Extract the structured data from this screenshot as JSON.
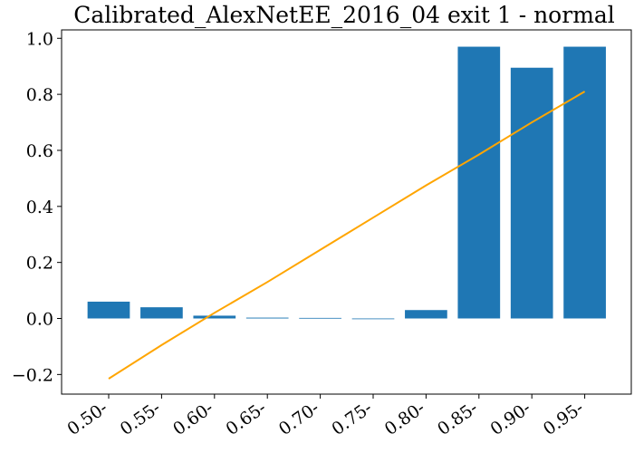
{
  "chart_data": {
    "type": "bar",
    "title": "Calibrated_AlexNetEE_2016_04 exit 1 - normal",
    "xlabel": "",
    "ylabel": "",
    "categories": [
      "0.50-",
      "0.55-",
      "0.60-",
      "0.65-",
      "0.70-",
      "0.75-",
      "0.80-",
      "0.85-",
      "0.90-",
      "0.95-"
    ],
    "series": [
      {
        "type": "bar",
        "values": [
          0.06,
          0.04,
          0.01,
          0.003,
          0.002,
          0.0,
          0.03,
          0.97,
          0.895,
          0.97
        ],
        "color": "#1f77b4"
      },
      {
        "type": "line",
        "values": [
          -0.215,
          -0.095,
          0.02,
          0.13,
          0.245,
          0.36,
          0.475,
          0.585,
          0.7,
          0.81
        ],
        "color": "#ffa500"
      }
    ],
    "ylim": [
      -0.27,
      1.03
    ],
    "yticks": [
      -0.2,
      0.0,
      0.2,
      0.4,
      0.6,
      0.8,
      1.0
    ],
    "ytick_labels": [
      "−0.2",
      "0.0",
      "0.2",
      "0.4",
      "0.6",
      "0.8",
      "1.0"
    ],
    "grid": false,
    "legend": "none"
  }
}
